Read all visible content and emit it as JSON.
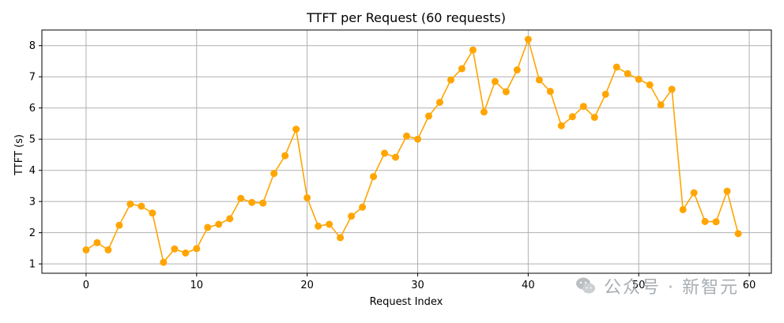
{
  "chart_data": {
    "type": "line",
    "title": "TTFT per Request (60 requests)",
    "xlabel": "Request Index",
    "ylabel": "TTFT (s)",
    "xlim": [
      -4,
      62
    ],
    "ylim": [
      0.7,
      8.5
    ],
    "xticks": [
      0,
      10,
      20,
      30,
      40,
      50,
      60
    ],
    "yticks": [
      1,
      2,
      3,
      4,
      5,
      6,
      7,
      8
    ],
    "grid": true,
    "legend": "none",
    "series": [
      {
        "color": "#FFA500",
        "marker": "circle",
        "x": [
          0,
          1,
          2,
          3,
          4,
          5,
          6,
          7,
          8,
          9,
          10,
          11,
          12,
          13,
          14,
          15,
          16,
          17,
          18,
          19,
          20,
          21,
          22,
          23,
          24,
          25,
          26,
          27,
          28,
          29,
          30,
          31,
          32,
          33,
          34,
          35,
          36,
          37,
          38,
          39,
          40,
          41,
          42,
          43,
          44,
          45,
          46,
          47,
          48,
          49,
          50,
          51,
          52,
          53,
          54,
          55,
          56,
          57,
          58,
          59
        ],
        "values": [
          1.45,
          1.68,
          1.45,
          2.24,
          2.92,
          2.85,
          2.63,
          1.05,
          1.48,
          1.35,
          1.49,
          2.17,
          2.27,
          2.45,
          3.1,
          2.97,
          2.95,
          3.9,
          4.47,
          5.32,
          3.12,
          2.21,
          2.27,
          1.84,
          2.53,
          2.82,
          3.8,
          4.55,
          4.42,
          5.1,
          5.0,
          5.74,
          6.18,
          6.9,
          7.26,
          7.86,
          5.87,
          6.85,
          6.52,
          7.22,
          8.2,
          6.9,
          6.53,
          5.43,
          5.72,
          6.05,
          5.7,
          6.44,
          7.31,
          7.1,
          6.92,
          6.74,
          6.1,
          6.6,
          2.74,
          3.28,
          2.36,
          2.35,
          3.33,
          1.97
        ]
      }
    ]
  },
  "watermark": {
    "icon": "wechat-icon",
    "text": "公众号 · 新智元"
  }
}
